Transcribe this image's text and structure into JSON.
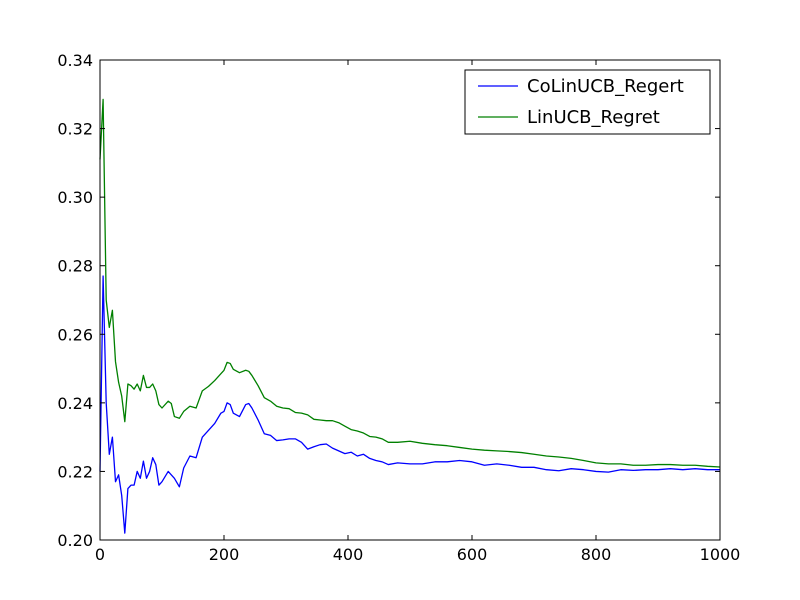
{
  "chart_data": {
    "type": "line",
    "title": "",
    "xlabel": "",
    "ylabel": "",
    "xlim": [
      0,
      1000
    ],
    "ylim": [
      0.2,
      0.34
    ],
    "xticks": [
      "0",
      "200",
      "400",
      "600",
      "800",
      "1000"
    ],
    "xtick_values": [
      0,
      200,
      400,
      600,
      800,
      1000
    ],
    "yticks": [
      "0.20",
      "0.22",
      "0.24",
      "0.26",
      "0.28",
      "0.30",
      "0.32",
      "0.34"
    ],
    "ytick_values": [
      0.2,
      0.22,
      0.24,
      0.26,
      0.28,
      0.3,
      0.32,
      0.34
    ],
    "grid": false,
    "legend_position": "top-right",
    "series": [
      {
        "name": "CoLinUCB_Regert",
        "color": "#0000ff",
        "x": [
          0,
          5,
          10,
          15,
          20,
          25,
          30,
          35,
          40,
          45,
          50,
          55,
          60,
          65,
          70,
          75,
          80,
          85,
          90,
          95,
          100,
          110,
          120,
          128,
          135,
          145,
          155,
          165,
          175,
          185,
          195,
          200,
          205,
          210,
          215,
          225,
          235,
          240,
          245,
          255,
          265,
          275,
          285,
          295,
          305,
          315,
          325,
          335,
          345,
          355,
          365,
          375,
          385,
          395,
          405,
          415,
          425,
          435,
          445,
          455,
          465,
          480,
          500,
          520,
          540,
          560,
          580,
          600,
          620,
          640,
          660,
          680,
          700,
          720,
          740,
          760,
          780,
          800,
          820,
          840,
          860,
          880,
          900,
          920,
          940,
          960,
          980,
          1000
        ],
        "y": [
          0.22,
          0.277,
          0.24,
          0.225,
          0.23,
          0.217,
          0.219,
          0.213,
          0.202,
          0.215,
          0.216,
          0.216,
          0.22,
          0.218,
          0.223,
          0.218,
          0.22,
          0.224,
          0.222,
          0.216,
          0.217,
          0.22,
          0.218,
          0.2155,
          0.221,
          0.2245,
          0.224,
          0.23,
          0.232,
          0.234,
          0.237,
          0.2375,
          0.24,
          0.2395,
          0.237,
          0.236,
          0.2395,
          0.2398,
          0.2385,
          0.235,
          0.231,
          0.2305,
          0.229,
          0.2292,
          0.2295,
          0.2295,
          0.2285,
          0.2265,
          0.2272,
          0.2278,
          0.228,
          0.2268,
          0.226,
          0.2252,
          0.2256,
          0.2245,
          0.225,
          0.2238,
          0.2232,
          0.2228,
          0.222,
          0.2225,
          0.2222,
          0.2222,
          0.2228,
          0.2228,
          0.2232,
          0.2228,
          0.2218,
          0.2222,
          0.2218,
          0.2212,
          0.2212,
          0.2205,
          0.2202,
          0.2208,
          0.2205,
          0.22,
          0.2198,
          0.2205,
          0.2203,
          0.2205,
          0.2205,
          0.2208,
          0.2205,
          0.2208,
          0.2205,
          0.2205
        ]
      },
      {
        "name": "LinUCB_Regret",
        "color": "#008000",
        "x": [
          0,
          5,
          10,
          15,
          20,
          25,
          30,
          35,
          40,
          45,
          50,
          55,
          60,
          65,
          70,
          75,
          80,
          85,
          90,
          95,
          100,
          110,
          115,
          120,
          128,
          135,
          145,
          155,
          160,
          165,
          175,
          185,
          195,
          200,
          205,
          210,
          215,
          225,
          235,
          240,
          245,
          255,
          265,
          275,
          285,
          295,
          305,
          315,
          325,
          335,
          345,
          355,
          365,
          375,
          385,
          395,
          405,
          415,
          425,
          435,
          445,
          455,
          465,
          480,
          500,
          520,
          540,
          560,
          580,
          600,
          620,
          640,
          660,
          680,
          700,
          720,
          740,
          760,
          780,
          800,
          820,
          840,
          860,
          880,
          900,
          920,
          940,
          960,
          980,
          1000
        ],
        "y": [
          0.311,
          0.3285,
          0.27,
          0.262,
          0.267,
          0.252,
          0.246,
          0.242,
          0.2345,
          0.2455,
          0.245,
          0.244,
          0.2455,
          0.2435,
          0.248,
          0.2445,
          0.2445,
          0.2455,
          0.2435,
          0.2395,
          0.2385,
          0.2405,
          0.2398,
          0.236,
          0.2355,
          0.2375,
          0.239,
          0.2385,
          0.241,
          0.2435,
          0.2448,
          0.2465,
          0.2485,
          0.2495,
          0.2518,
          0.2515,
          0.2498,
          0.2488,
          0.2495,
          0.2492,
          0.248,
          0.245,
          0.2415,
          0.2405,
          0.239,
          0.2385,
          0.2383,
          0.2372,
          0.237,
          0.2365,
          0.2352,
          0.235,
          0.2348,
          0.2348,
          0.2342,
          0.2332,
          0.2322,
          0.2318,
          0.2312,
          0.2302,
          0.23,
          0.2295,
          0.2285,
          0.2285,
          0.2288,
          0.2282,
          0.2278,
          0.2275,
          0.227,
          0.2265,
          0.2262,
          0.226,
          0.2258,
          0.2255,
          0.225,
          0.2245,
          0.2242,
          0.2238,
          0.2232,
          0.2225,
          0.2222,
          0.2222,
          0.2218,
          0.2218,
          0.222,
          0.222,
          0.2218,
          0.2218,
          0.2215,
          0.2213
        ]
      }
    ]
  }
}
